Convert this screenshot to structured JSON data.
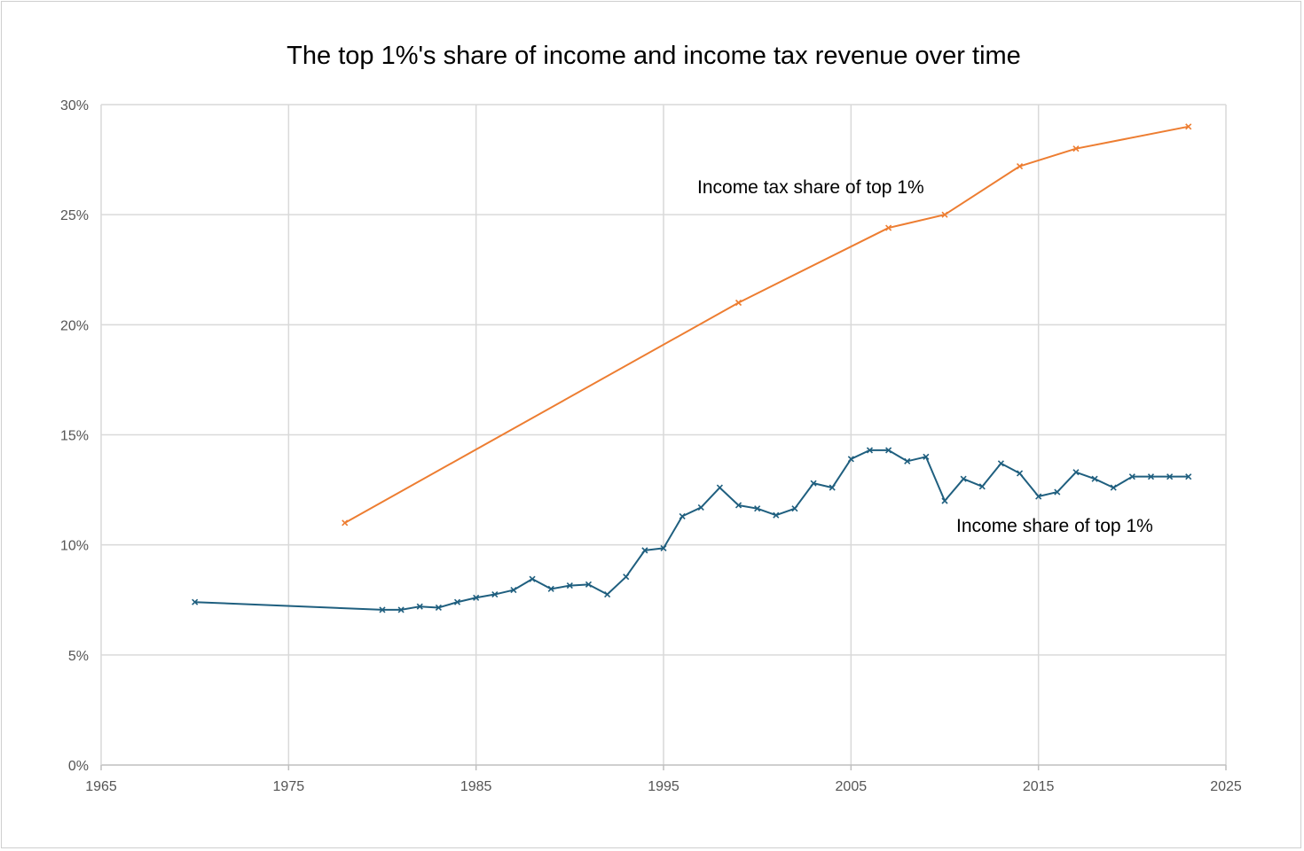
{
  "chart_data": {
    "type": "line",
    "title": "The top 1%'s share of income and income tax revenue over time",
    "xlabel": "",
    "ylabel": "",
    "xlim": [
      1965,
      2025
    ],
    "ylim": [
      0,
      30
    ],
    "x_ticks": [
      "1965",
      "1975",
      "1985",
      "1995",
      "2005",
      "2015",
      "2025"
    ],
    "y_ticks": [
      "0%",
      "5%",
      "10%",
      "15%",
      "20%",
      "25%",
      "30%"
    ],
    "grid": true,
    "legend": "none",
    "series": [
      {
        "name": "Income tax share of top 1%",
        "color": "#ed7d31",
        "marker": "x",
        "points": [
          [
            1978,
            11.0
          ],
          [
            1999,
            21.0
          ],
          [
            2007,
            24.4
          ],
          [
            2010,
            25.0
          ],
          [
            2014,
            27.2
          ],
          [
            2017,
            28.0
          ],
          [
            2023,
            29.0
          ]
        ]
      },
      {
        "name": "Income share of top 1%",
        "color": "#1f5f7f",
        "marker": "x",
        "points": [
          [
            1970,
            7.4
          ],
          [
            1980,
            7.05
          ],
          [
            1981,
            7.05
          ],
          [
            1982,
            7.2
          ],
          [
            1983,
            7.15
          ],
          [
            1984,
            7.4
          ],
          [
            1985,
            7.6
          ],
          [
            1986,
            7.75
          ],
          [
            1987,
            7.95
          ],
          [
            1988,
            8.45
          ],
          [
            1989,
            8.0
          ],
          [
            1990,
            8.15
          ],
          [
            1991,
            8.2
          ],
          [
            1992,
            7.75
          ],
          [
            1993,
            8.55
          ],
          [
            1994,
            9.75
          ],
          [
            1995,
            9.85
          ],
          [
            1996,
            11.3
          ],
          [
            1997,
            11.7
          ],
          [
            1998,
            12.6
          ],
          [
            1999,
            11.8
          ],
          [
            2000,
            11.65
          ],
          [
            2001,
            11.35
          ],
          [
            2002,
            11.65
          ],
          [
            2003,
            12.8
          ],
          [
            2004,
            12.6
          ],
          [
            2005,
            13.9
          ],
          [
            2006,
            14.3
          ],
          [
            2007,
            14.3
          ],
          [
            2008,
            13.8
          ],
          [
            2009,
            14.0
          ],
          [
            2010,
            12.0
          ],
          [
            2011,
            13.0
          ],
          [
            2012,
            12.65
          ],
          [
            2013,
            13.7
          ],
          [
            2014,
            13.25
          ],
          [
            2015,
            12.2
          ],
          [
            2016,
            12.4
          ],
          [
            2017,
            13.3
          ],
          [
            2018,
            13.0
          ],
          [
            2019,
            12.6
          ],
          [
            2020,
            13.1
          ],
          [
            2021,
            13.1
          ],
          [
            2022,
            13.1
          ],
          [
            2023,
            13.1
          ]
        ]
      }
    ],
    "annotations": [
      {
        "text": "Income tax share of top 1%",
        "series": 0
      },
      {
        "text": "Income share of top 1%",
        "series": 1
      }
    ]
  }
}
